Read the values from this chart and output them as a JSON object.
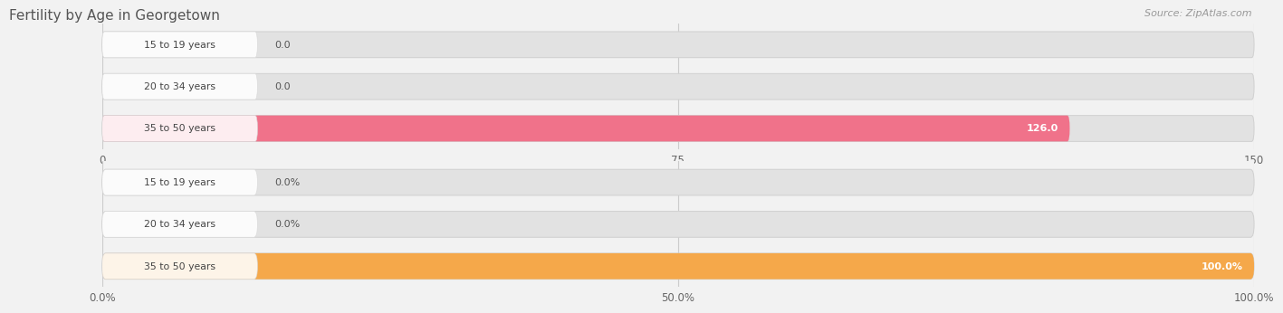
{
  "title": "Fertility by Age in Georgetown",
  "source": "Source: ZipAtlas.com",
  "background_color": "#f2f2f2",
  "top_chart": {
    "categories": [
      "15 to 19 years",
      "20 to 34 years",
      "35 to 50 years"
    ],
    "values": [
      0.0,
      0.0,
      126.0
    ],
    "xlim": [
      0,
      150
    ],
    "xticks": [
      0.0,
      75.0,
      150.0
    ],
    "bar_color": "#f0728a",
    "bar_bg_color": "#e8e8e8",
    "label_bg": "#f5d5dd",
    "bar_border_color": "#dddddd"
  },
  "bottom_chart": {
    "categories": [
      "15 to 19 years",
      "20 to 34 years",
      "35 to 50 years"
    ],
    "values": [
      0.0,
      0.0,
      100.0
    ],
    "xlim": [
      0,
      100
    ],
    "xticks": [
      0.0,
      50.0,
      100.0
    ],
    "xtick_labels": [
      "0.0%",
      "50.0%",
      "100.0%"
    ],
    "bar_color": "#f5a84a",
    "bar_bg_color": "#e8e8e8",
    "label_bg": "#f5dfc0",
    "bar_border_color": "#dddddd"
  }
}
